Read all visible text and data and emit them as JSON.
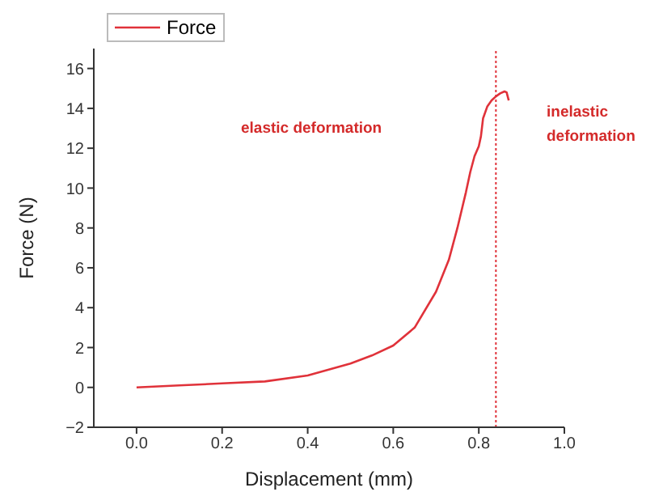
{
  "chart_data": {
    "type": "line",
    "xlabel": "Displacement (mm)",
    "ylabel": "Force (N)",
    "x": [
      0,
      0.1,
      0.2,
      0.3,
      0.4,
      0.5,
      0.55,
      0.6,
      0.65,
      0.7,
      0.73,
      0.75,
      0.77,
      0.78,
      0.79,
      0.8,
      0.805,
      0.81,
      0.82,
      0.83,
      0.84,
      0.85,
      0.86,
      0.865,
      0.87
    ],
    "series": [
      {
        "name": "Force",
        "color": "#e0323a",
        "values": [
          0,
          0.1,
          0.2,
          0.3,
          0.6,
          1.2,
          1.6,
          2.1,
          3.0,
          4.8,
          6.4,
          8.0,
          9.8,
          10.8,
          11.6,
          12.1,
          12.6,
          13.5,
          14.1,
          14.4,
          14.6,
          14.75,
          14.85,
          14.8,
          14.4
        ]
      }
    ],
    "xlim": [
      -0.1,
      1.0
    ],
    "xticks": [
      {
        "value": 0,
        "label": "0.0"
      },
      {
        "value": 0.2,
        "label": "0.2"
      },
      {
        "value": 0.4,
        "label": "0.4"
      },
      {
        "value": 0.6,
        "label": "0.6"
      },
      {
        "value": 0.8,
        "label": "0.8"
      },
      {
        "value": 1,
        "label": "1.0"
      }
    ],
    "ylim": [
      -2,
      17
    ],
    "yticks": [
      -2,
      0,
      2,
      4,
      6,
      8,
      10,
      12,
      14,
      16
    ],
    "ref_lines": [
      {
        "axis": "x",
        "value": 0.84,
        "color": "#e0323a",
        "line_style": "dotted"
      }
    ],
    "annotations": [
      "elastic deformation",
      "inelastic deformation"
    ],
    "legend": "top left",
    "grid": false,
    "marker": "none",
    "line_style": "solid"
  }
}
